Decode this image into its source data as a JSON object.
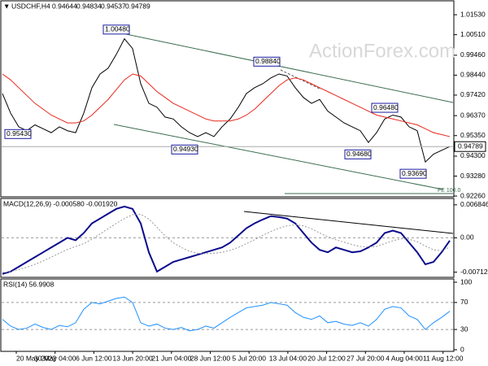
{
  "header": {
    "symbol": "USDCHF,H4",
    "open": 0.94644,
    "high": 0.94834,
    "low": 0.94537,
    "close": 0.94789
  },
  "watermark": "ActionForex.com",
  "chart_data": [
    {
      "type": "line",
      "ylim": [
        0.9222,
        1.022
      ],
      "yticks": [
        {
          "value": 1.0153,
          "label": "1.01530"
        },
        {
          "value": 1.0051,
          "label": "1.00510"
        },
        {
          "value": 0.9946,
          "label": "0.99460"
        },
        {
          "value": 0.9844,
          "label": "0.98440"
        },
        {
          "value": 0.9742,
          "label": "0.97420"
        },
        {
          "value": 0.9637,
          "label": "0.96370"
        },
        {
          "value": 0.9535,
          "label": "0.95350"
        },
        {
          "value": 0.943,
          "label": "0.94300"
        },
        {
          "value": 0.9328,
          "label": "0.93280"
        },
        {
          "value": 0.9226,
          "label": "0.92260"
        }
      ],
      "series": [
        {
          "name": "USDCHF,H4",
          "color": "#000000",
          "values": [
            0.975,
            0.965,
            0.958,
            0.956,
            0.959,
            0.957,
            0.955,
            0.958,
            0.956,
            0.955,
            0.965,
            0.978,
            0.985,
            0.988,
            0.995,
            1.003,
            0.998,
            0.98,
            0.97,
            0.968,
            0.963,
            0.962,
            0.958,
            0.955,
            0.953,
            0.955,
            0.953,
            0.958,
            0.962,
            0.968,
            0.975,
            0.978,
            0.98,
            0.983,
            0.985,
            0.984,
            0.978,
            0.973,
            0.97,
            0.972,
            0.966,
            0.963,
            0.96,
            0.958,
            0.956,
            0.95,
            0.955,
            0.962,
            0.964,
            0.963,
            0.958,
            0.956,
            0.94,
            0.944,
            0.946,
            0.94789
          ]
        },
        {
          "color": "#e8281e",
          "values": [
            0.985,
            0.982,
            0.978,
            0.974,
            0.97,
            0.967,
            0.964,
            0.962,
            0.96,
            0.96,
            0.961,
            0.964,
            0.968,
            0.972,
            0.977,
            0.982,
            0.985,
            0.984,
            0.98,
            0.976,
            0.973,
            0.97,
            0.968,
            0.966,
            0.964,
            0.962,
            0.961,
            0.961,
            0.961,
            0.962,
            0.964,
            0.967,
            0.971,
            0.975,
            0.979,
            0.982,
            0.983,
            0.982,
            0.98,
            0.978,
            0.976,
            0.974,
            0.972,
            0.97,
            0.968,
            0.966,
            0.964,
            0.963,
            0.962,
            0.961,
            0.96,
            0.959,
            0.957,
            0.955,
            0.954,
            0.953
          ]
        }
      ],
      "annotations": [
        {
          "value": 1.0048,
          "label": "1.00480"
        },
        {
          "value": 0.9543,
          "label": "0.95430"
        },
        {
          "value": 0.9493,
          "label": "0.94930"
        },
        {
          "value": 0.9884,
          "label": "0.98840"
        },
        {
          "value": 0.9468,
          "label": "0.94680"
        },
        {
          "value": 0.9648,
          "label": "0.96480"
        },
        {
          "value": 0.9369,
          "label": "0.93690"
        }
      ],
      "fe_label": "FE 100.0",
      "x_tick_labels": [
        "20 May 2022",
        "30 May 04:00",
        "6 Jun 12:00",
        "13 Jun 20:00",
        "21 Jun 04:00",
        "28 Jun 12:00",
        "5 Jul 20:00",
        "13 Jul 04:00",
        "20 Jul 12:00",
        "27 Jul 20:00",
        "4 Aug 04:00",
        "11 Aug 12:00"
      ]
    },
    {
      "type": "line",
      "title": "MACD(12,26,9) -0.000580 -0.001920",
      "ylim": [
        -0.0082,
        0.008
      ],
      "yticks": [
        0.006846,
        {
          "value": 0,
          "label": "0.00"
        },
        -0.007128
      ],
      "series": [
        {
          "color": "#0a0a8c",
          "values": [
            -0.0075,
            -0.007,
            -0.006,
            -0.005,
            -0.004,
            -0.003,
            -0.002,
            -0.001,
            0,
            -0.0005,
            0.001,
            0.003,
            0.004,
            0.005,
            0.006,
            0.0065,
            0.006,
            0.003,
            -0.003,
            -0.007,
            -0.006,
            -0.005,
            -0.0045,
            -0.004,
            -0.0035,
            -0.003,
            -0.0025,
            -0.002,
            -0.001,
            0.0005,
            0.002,
            0.003,
            0.0038,
            0.0045,
            0.0043,
            0.004,
            0.003,
            0.001,
            -0.001,
            -0.0025,
            -0.003,
            -0.002,
            -0.0025,
            -0.003,
            -0.0028,
            -0.002,
            -0.001,
            0.001,
            0.0015,
            0.001,
            -0.001,
            -0.003,
            -0.0055,
            -0.005,
            -0.003,
            -0.00058
          ]
        },
        {
          "color": "#999999",
          "values": [
            -0.0072,
            -0.007,
            -0.0066,
            -0.0061,
            -0.0055,
            -0.0048,
            -0.004,
            -0.0032,
            -0.0024,
            -0.0018,
            -0.0012,
            -0.0003,
            0.0008,
            0.0019,
            0.003,
            0.004,
            0.0048,
            0.0049,
            0.0039,
            0.0022,
            0.0004,
            -0.001,
            -0.002,
            -0.0028,
            -0.0032,
            -0.0033,
            -0.0032,
            -0.003,
            -0.0026,
            -0.002,
            -0.0012,
            -0.0004,
            0.0005,
            0.0013,
            0.002,
            0.0025,
            0.0027,
            0.0025,
            0.0019,
            0.001,
            0.0002,
            -0.0004,
            -0.0009,
            -0.0014,
            -0.0018,
            -0.0019,
            -0.0018,
            -0.0012,
            -0.0006,
            -0.0002,
            -0.0003,
            -0.0008,
            -0.0017,
            -0.0025,
            -0.0027,
            -0.00192
          ]
        }
      ]
    },
    {
      "type": "line",
      "title": "RSI(14) 56.9908",
      "ylim": [
        0,
        100
      ],
      "yticks": [
        100,
        70,
        30,
        0
      ],
      "series": [
        {
          "color": "#1e90ff",
          "values": [
            45,
            35,
            30,
            32,
            38,
            33,
            30,
            36,
            34,
            40,
            60,
            70,
            68,
            72,
            76,
            78,
            70,
            40,
            35,
            38,
            32,
            30,
            33,
            28,
            30,
            35,
            32,
            40,
            48,
            55,
            62,
            64,
            66,
            70,
            68,
            66,
            55,
            48,
            45,
            50,
            40,
            42,
            38,
            36,
            40,
            35,
            45,
            60,
            64,
            62,
            50,
            45,
            30,
            40,
            48,
            56.9908
          ]
        }
      ]
    }
  ]
}
